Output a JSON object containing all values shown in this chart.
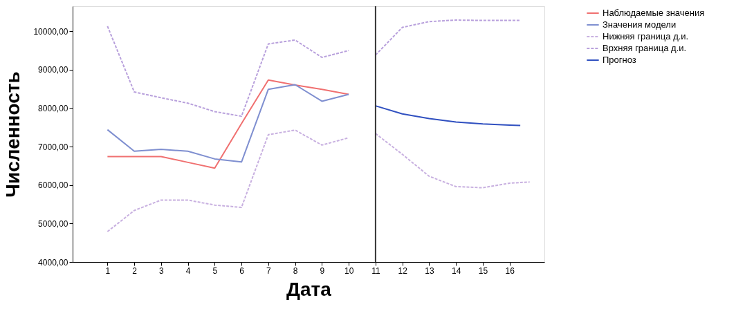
{
  "chart_data": {
    "type": "line",
    "xlabel": "Дата",
    "ylabel": "Численность",
    "xlim": [
      -0.3,
      17.3
    ],
    "xticks": [
      1,
      2,
      3,
      4,
      5,
      6,
      7,
      8,
      9,
      10,
      11,
      12,
      13,
      14,
      15,
      16
    ],
    "ylim": [
      4000,
      10650
    ],
    "yticks": [
      {
        "value": 4000,
        "label": "4000,00"
      },
      {
        "value": 5000,
        "label": "5000,00"
      },
      {
        "value": 6000,
        "label": "6000,00"
      },
      {
        "value": 7000,
        "label": "7000,00"
      },
      {
        "value": 8000,
        "label": "8000,00"
      },
      {
        "value": 9000,
        "label": "9000,00"
      },
      {
        "value": 10000,
        "label": "10000,00"
      }
    ],
    "grid": false,
    "legend": "top right",
    "ref_lines": [
      {
        "axis": "x",
        "value": 11,
        "color": "#333333",
        "line_style": "solid"
      }
    ],
    "series": [
      {
        "name": "Наблюдаемые значения",
        "color": "#f07070",
        "line_style": "solid",
        "x": [
          1,
          2,
          3,
          4,
          5,
          6,
          7,
          8,
          9,
          10
        ],
        "values": [
          6740,
          6740,
          6740,
          6590,
          6440,
          7600,
          8730,
          8600,
          8490,
          8360
        ]
      },
      {
        "name": "Значения модели",
        "color": "#7f8fd0",
        "line_style": "solid",
        "x": [
          1,
          2,
          3,
          4,
          5,
          6,
          7,
          8,
          9,
          10
        ],
        "values": [
          7440,
          6880,
          6930,
          6880,
          6680,
          6600,
          8490,
          8610,
          8180,
          8360
        ]
      },
      {
        "name": "Нижняя граница д.и.",
        "color": "#c8b0e0",
        "line_style": "dashed",
        "x": [
          1,
          2,
          3,
          4,
          5,
          6,
          7,
          8,
          9,
          10,
          10.5,
          11,
          12,
          13,
          14,
          15,
          16,
          16.75
        ],
        "values": [
          4790,
          5340,
          5610,
          5610,
          5480,
          5420,
          7310,
          7430,
          7040,
          7230,
          null,
          7340,
          6800,
          6230,
          5960,
          5930,
          6050,
          6080
        ]
      },
      {
        "name": "Врхняя граница д.и.",
        "color": "#b8a0dc",
        "line_style": "dashed",
        "x": [
          1,
          2,
          3,
          4,
          5,
          6,
          7,
          8,
          9,
          10,
          10.5,
          11,
          12,
          13,
          14,
          15,
          16,
          16.4
        ],
        "values": [
          10130,
          8420,
          8270,
          8130,
          7910,
          7790,
          9670,
          9770,
          9320,
          9500,
          null,
          9380,
          10100,
          10250,
          10290,
          10280,
          10280,
          10280
        ]
      },
      {
        "name": "Прогноз",
        "color": "#3050c0",
        "line_style": "solid",
        "x": [
          11,
          12,
          13,
          14,
          15,
          16,
          16.4
        ],
        "values": [
          8060,
          7850,
          7730,
          7640,
          7590,
          7560,
          7550
        ]
      }
    ]
  }
}
